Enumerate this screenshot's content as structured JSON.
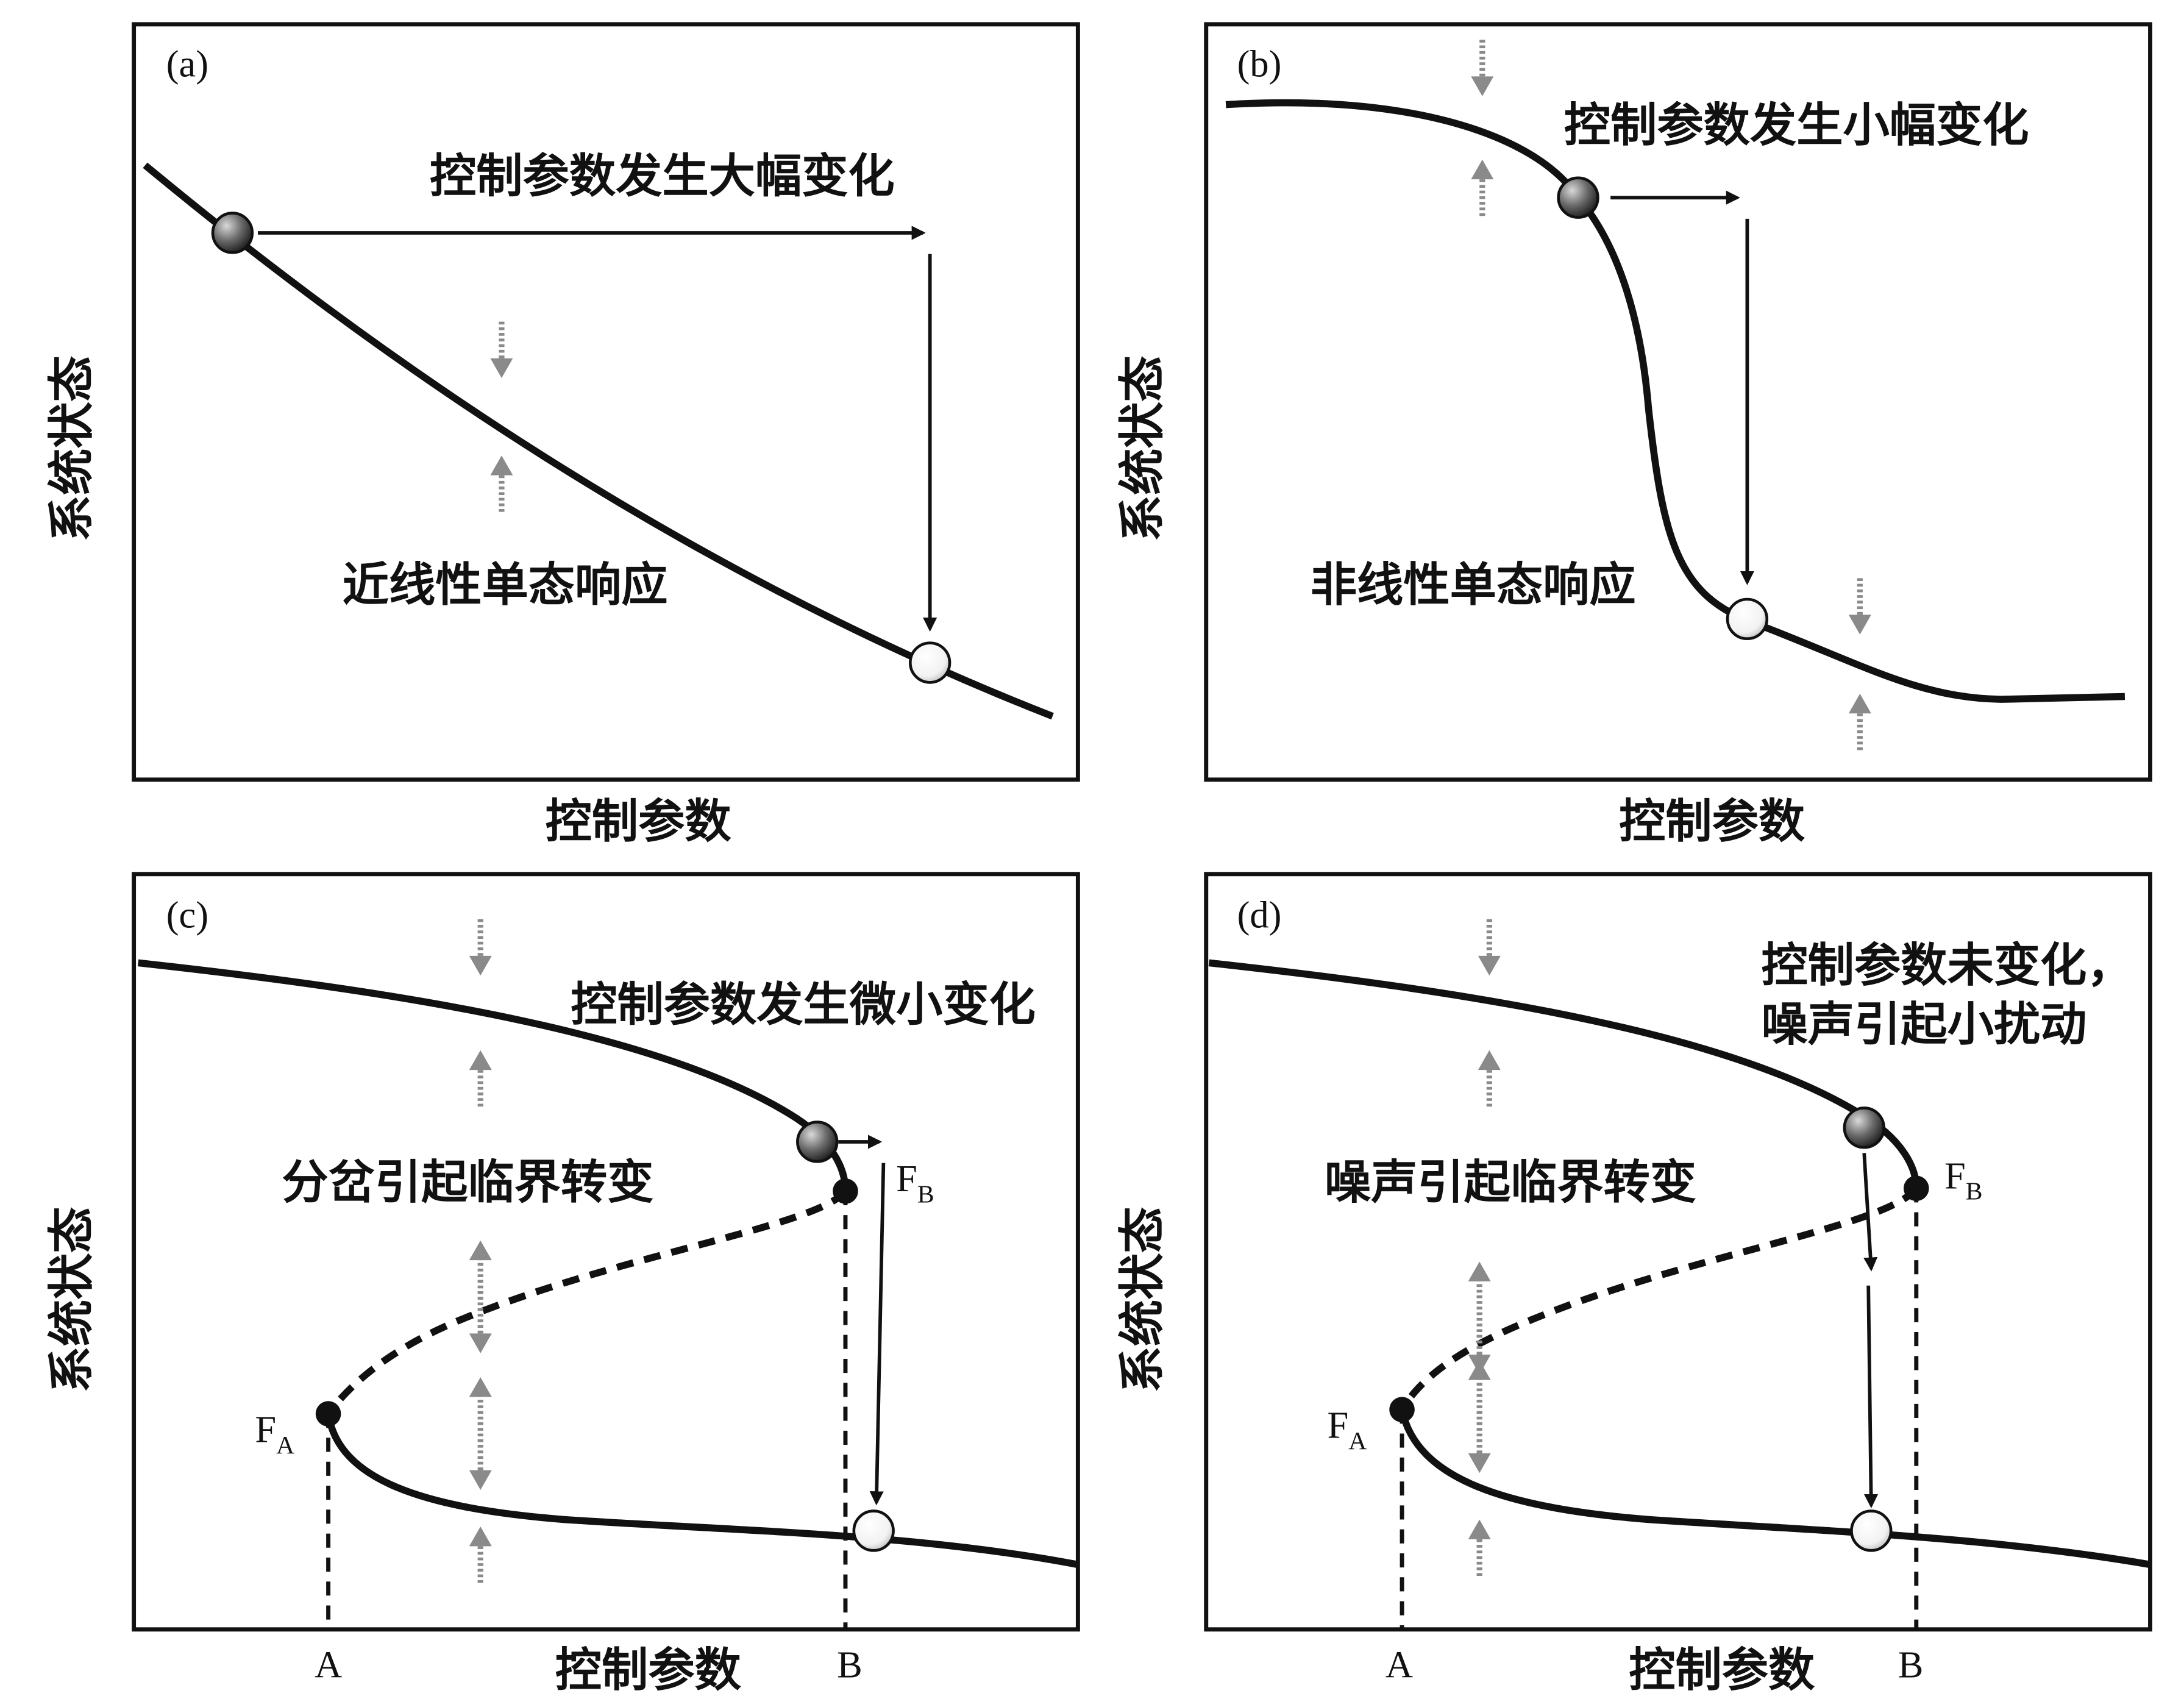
{
  "panels": {
    "a": {
      "tag": "(a)",
      "ylabel": "系统状态",
      "xlabel": "控制参数",
      "title": "控制参数发生大幅变化",
      "caption": "近线性单态响应"
    },
    "b": {
      "tag": "(b)",
      "ylabel": "系统状态",
      "xlabel": "控制参数",
      "title": "控制参数发生小幅变化",
      "caption": "非线性单态响应"
    },
    "c": {
      "tag": "(c)",
      "ylabel": "系统状态",
      "xlabel": "控制参数",
      "title": "控制参数发生微小变化",
      "caption": "分岔引起临界转变",
      "point_fa": "F",
      "point_fa_sub": "A",
      "point_fb": "F",
      "point_fb_sub": "B",
      "tick_a": "A",
      "tick_b": "B"
    },
    "d": {
      "tag": "(d)",
      "ylabel": "系统状态",
      "xlabel": "控制参数",
      "title_line1": "控制参数未变化，",
      "title_line2": "噪声引起小扰动",
      "caption": "噪声引起临界转变",
      "point_fa": "F",
      "point_fa_sub": "A",
      "point_fb": "F",
      "point_fb_sub": "B",
      "tick_a": "A",
      "tick_b": "B"
    }
  },
  "colors": {
    "line": "#111111",
    "noise_arrow": "#8a8a8a",
    "initial_state": "#6a6a6a",
    "final_state": "#f2f2f2"
  }
}
